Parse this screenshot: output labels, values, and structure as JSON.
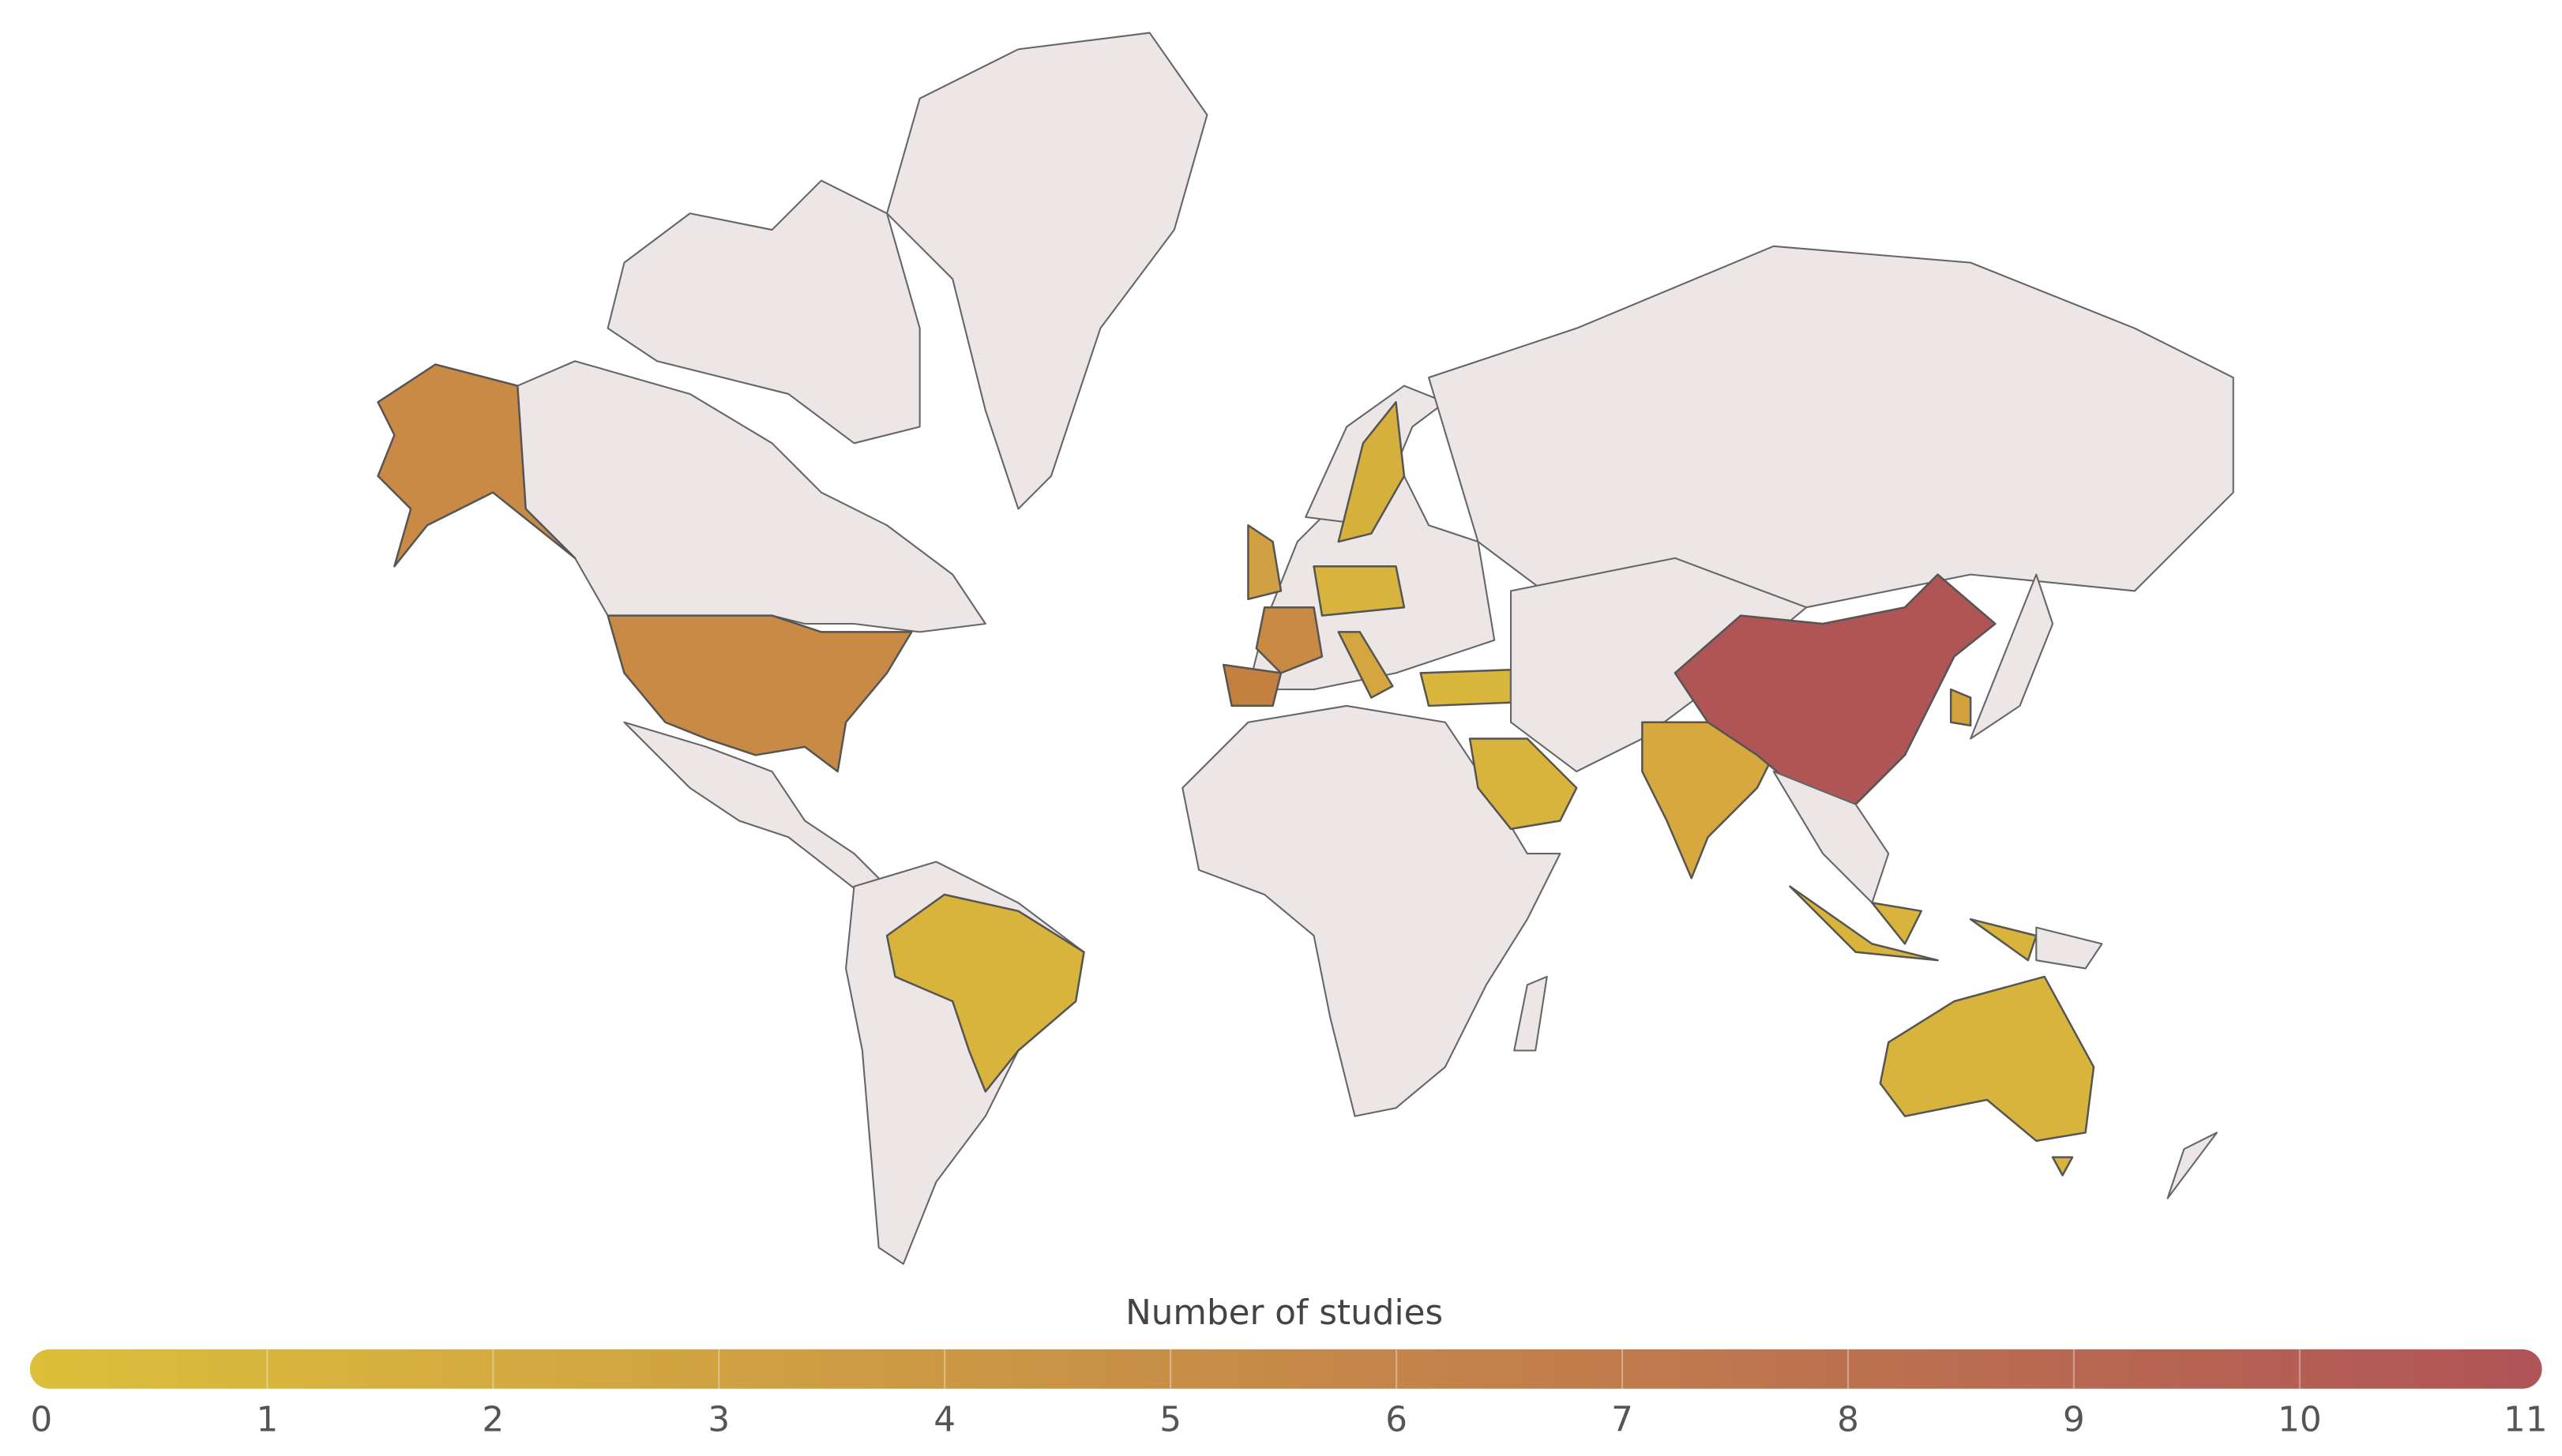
{
  "colorbar": {
    "title": "Number of studies",
    "range": [
      0,
      11
    ],
    "ticks": [
      0,
      1,
      2,
      3,
      4,
      5,
      6,
      7,
      8,
      9,
      10,
      11
    ],
    "colors": [
      "#dcbf3a",
      "#b05457"
    ]
  }
}
